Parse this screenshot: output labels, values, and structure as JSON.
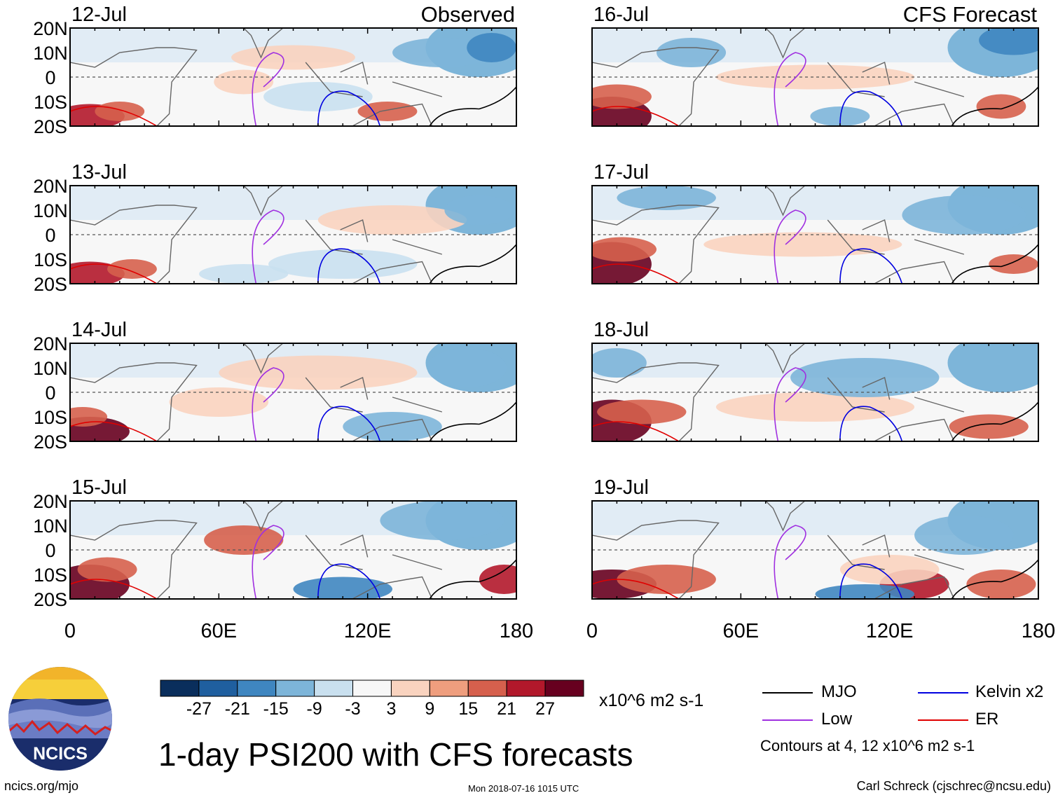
{
  "title": "1-day PSI200 with CFS forecasts",
  "footer": {
    "left": "ncics.org/mjo",
    "middle": "Mon 2018-07-16 1015 UTC",
    "right": "Carl Schreck (cjschrec@ncsu.edu)"
  },
  "logo_text": "NCICS",
  "colorbar": {
    "units": "x10^6 m2 s-1",
    "levels": [
      -27,
      -21,
      -15,
      -9,
      -3,
      3,
      9,
      15,
      21,
      27
    ],
    "tick_labels": [
      "-27",
      "-21",
      "-15",
      "-9",
      "-3",
      "3",
      "9",
      "15",
      "21",
      "27"
    ],
    "colors": [
      "#0a2e5c",
      "#1f5f9f",
      "#3f86c0",
      "#7db5d9",
      "#c9e0ef",
      "#f7f7f7",
      "#f9d3bf",
      "#ef9e7e",
      "#d6604d",
      "#b2182b",
      "#67001f"
    ]
  },
  "legend": {
    "items": [
      {
        "label": "MJO",
        "color": "#000000"
      },
      {
        "label": "Kelvin x2",
        "color": "#0000e0"
      },
      {
        "label": "Low",
        "color": "#a030e0"
      },
      {
        "label": "ER",
        "color": "#e00000"
      }
    ],
    "note": "Contours at 4, 12 x10^6 m2 s-1"
  },
  "chart_data": {
    "type": "heatmap",
    "variable": "PSI200",
    "x_ticks": [
      "0",
      "60E",
      "120E",
      "180"
    ],
    "y_ticks": [
      "20N",
      "10N",
      "0",
      "10S",
      "20S"
    ],
    "xlim": [
      0,
      180
    ],
    "ylim": [
      -20,
      20
    ],
    "columns": [
      {
        "header": "Observed",
        "panels": [
          "12-Jul",
          "13-Jul",
          "14-Jul",
          "15-Jul"
        ]
      },
      {
        "header": "CFS Forecast",
        "panels": [
          "16-Jul",
          "17-Jul",
          "18-Jul",
          "19-Jul"
        ]
      }
    ]
  }
}
